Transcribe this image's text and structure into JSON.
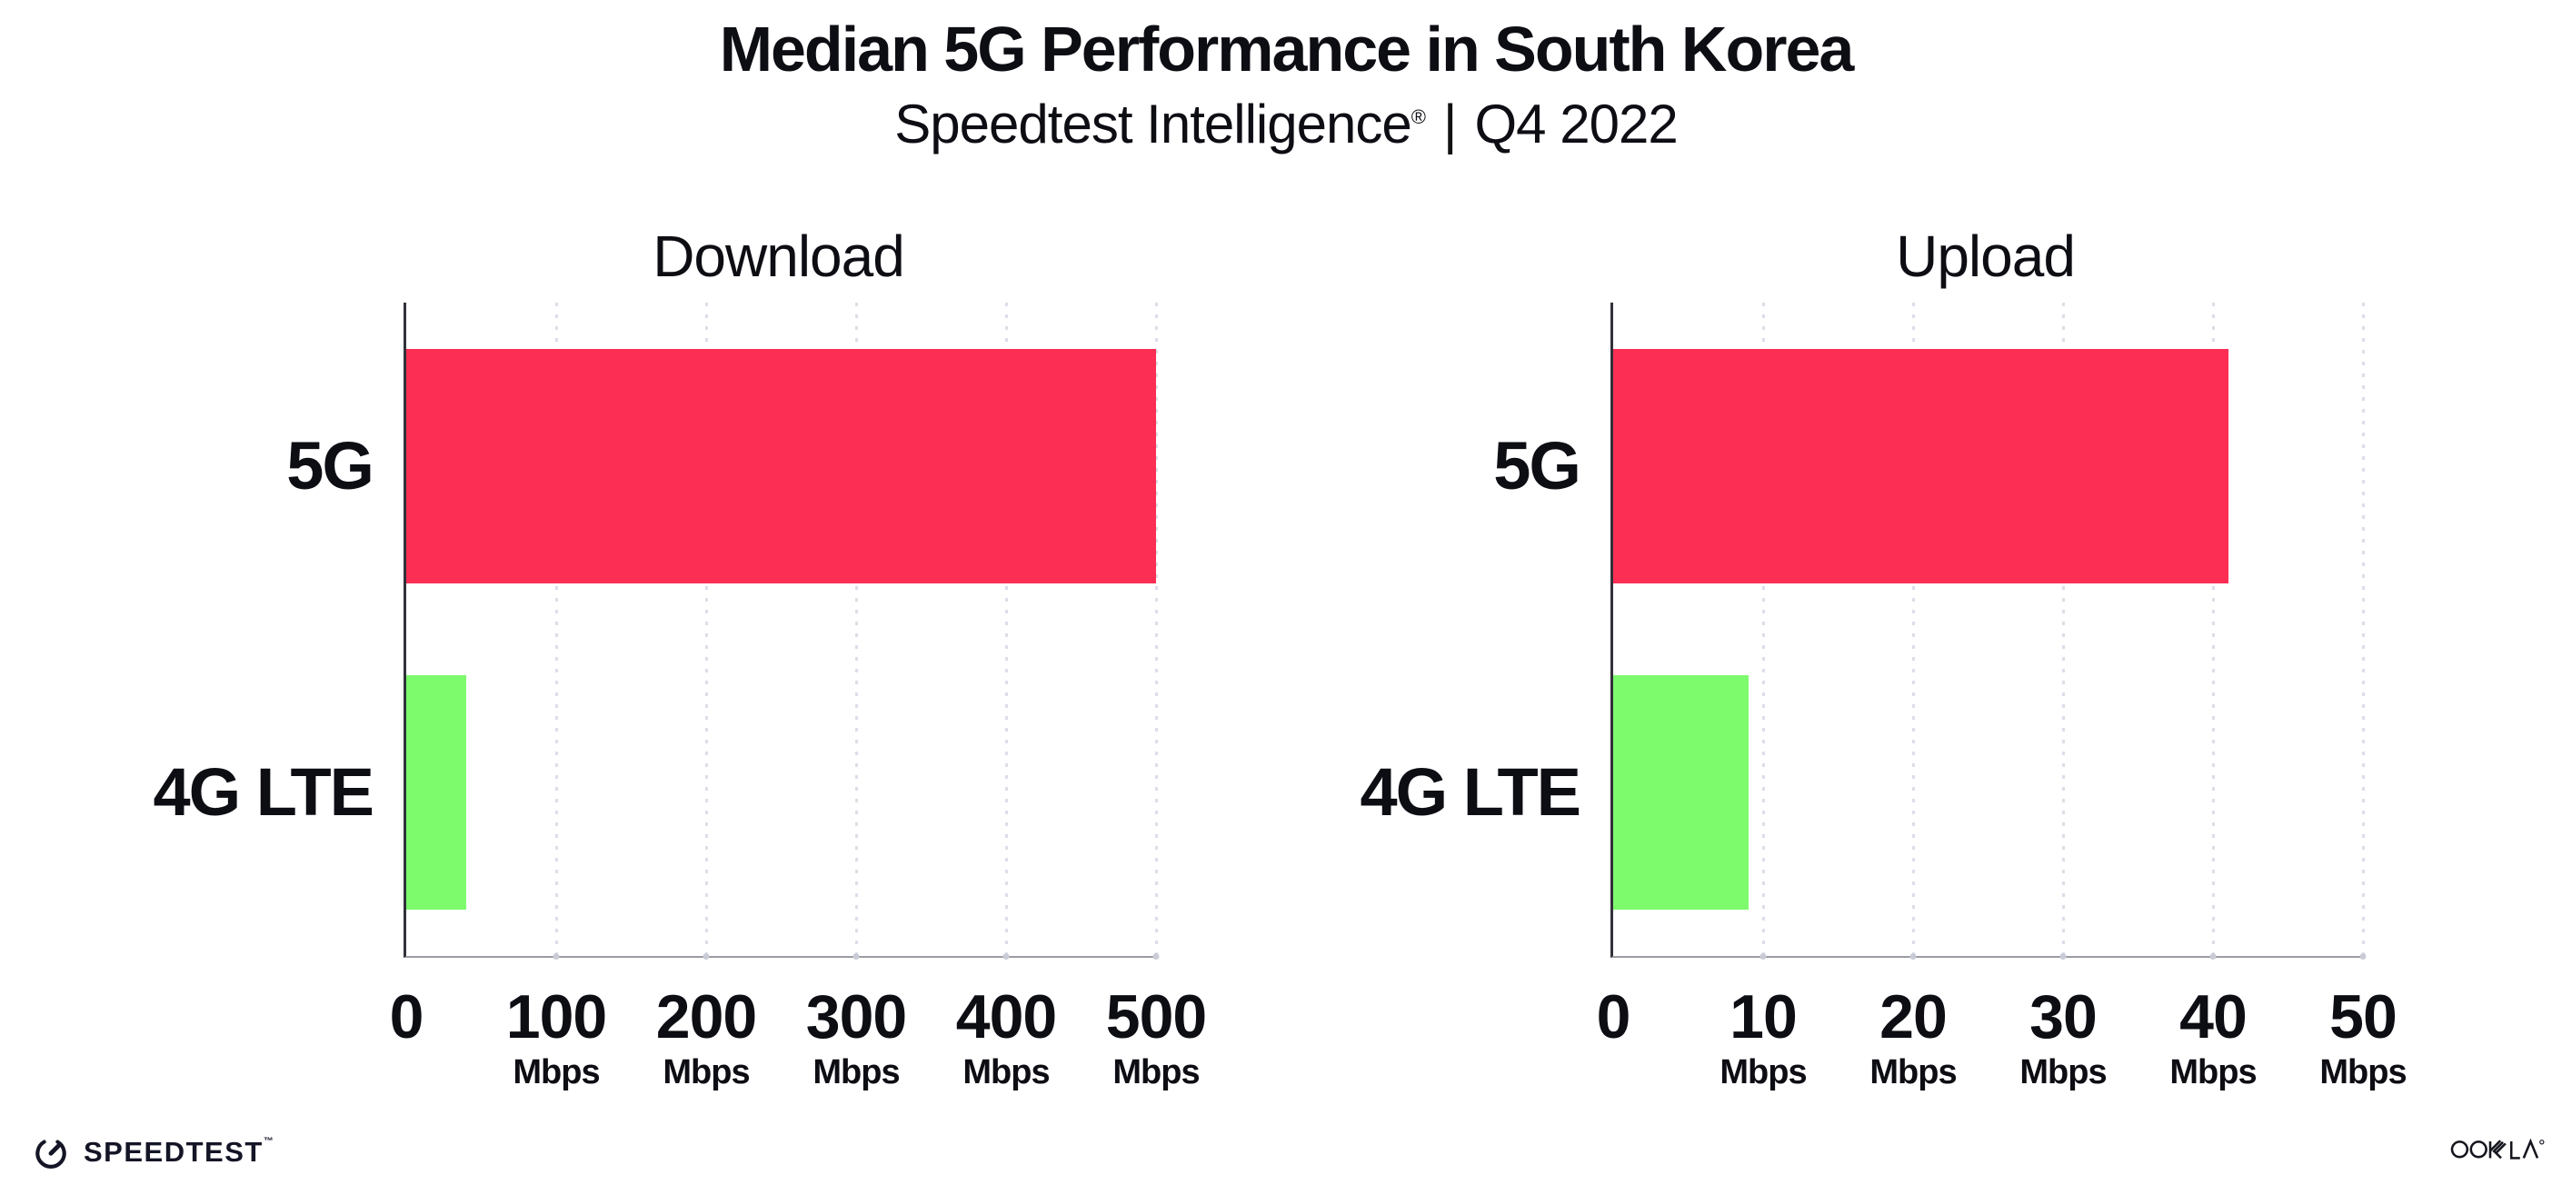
{
  "header": {
    "title": "Median 5G Performance in South Korea",
    "subtitle_product": "Speedtest Intelligence",
    "subtitle_reg": "®",
    "subtitle_separator": "|",
    "subtitle_period": "Q4 2022"
  },
  "colors": {
    "bar_5g": "#FC2E54",
    "bar_4g_lte": "#7EFB6D",
    "axis_spine_dark": "#31313b",
    "axis_spine_light": "#9b9ba3",
    "gridline": "#dcdee8",
    "text": "#0d0d14"
  },
  "chart_data": [
    {
      "type": "bar",
      "orientation": "horizontal",
      "title": "Download",
      "categories": [
        "5G",
        "4G LTE"
      ],
      "values": [
        500,
        40
      ],
      "unit": "Mbps",
      "xlim": [
        0,
        500
      ],
      "xticks": [
        0,
        100,
        200,
        300,
        400,
        500
      ],
      "bar_colors": [
        "#FC2E54",
        "#7EFB6D"
      ],
      "grid": "dotted-vertical",
      "legend": "none"
    },
    {
      "type": "bar",
      "orientation": "horizontal",
      "title": "Upload",
      "categories": [
        "5G",
        "4G LTE"
      ],
      "values": [
        41,
        9
      ],
      "unit": "Mbps",
      "xlim": [
        0,
        50
      ],
      "xticks": [
        0,
        10,
        20,
        30,
        40,
        50
      ],
      "bar_colors": [
        "#FC2E54",
        "#7EFB6D"
      ],
      "grid": "dotted-vertical",
      "legend": "none"
    }
  ],
  "footer": {
    "speedtest_label": "SPEEDTEST",
    "speedtest_mark": "™",
    "ookla_label": "OOKLA"
  }
}
